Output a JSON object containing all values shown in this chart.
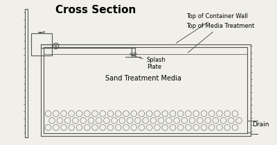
{
  "title": "Cross Section",
  "title_fontsize": 11,
  "title_fontweight": "bold",
  "bg_color": "#f0efe8",
  "line_color": "#555555",
  "label_fontsize": 6.0,
  "annotations": {
    "top_container_wall": "Top of Container Wall",
    "top_media_treatment": "Top of Media Treatment",
    "splash_plate": "Splash\nPlate",
    "sand_media": "Sand Treatment Media",
    "drain": "Drain"
  },
  "xlim": [
    0,
    10
  ],
  "ylim": [
    0,
    6
  ]
}
